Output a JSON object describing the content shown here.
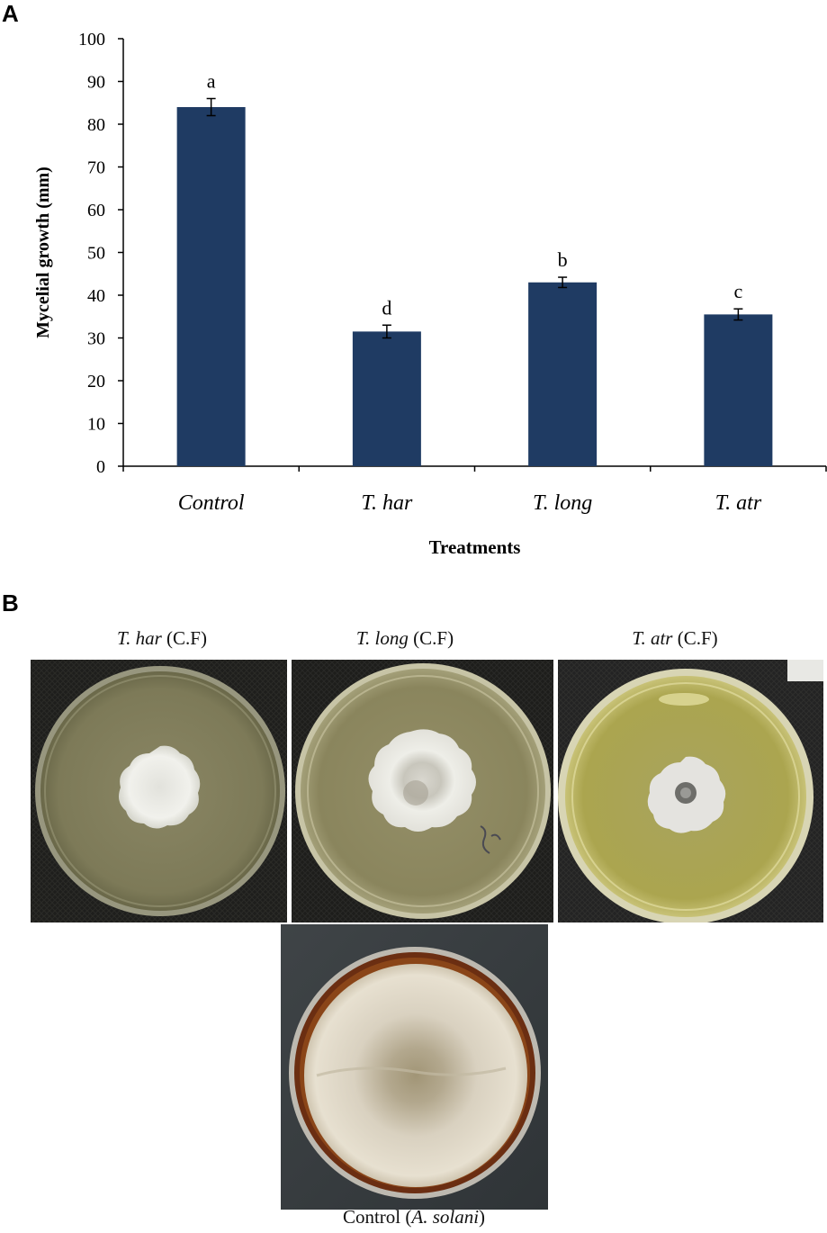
{
  "panel_a_label": "A",
  "panel_b_label": "B",
  "chart_data": {
    "type": "bar",
    "categories": [
      "Control",
      "T. har",
      "T. long",
      "T. atr"
    ],
    "values": [
      84,
      31.5,
      43,
      35.5
    ],
    "errors": [
      2,
      1.5,
      1.2,
      1.3
    ],
    "significance_letters": [
      "a",
      "d",
      "b",
      "c"
    ],
    "title": "",
    "xlabel": "Treatments",
    "ylabel": "Mycelial growth (mm)",
    "ylim": [
      0,
      100
    ],
    "yticks": [
      0,
      10,
      20,
      30,
      40,
      50,
      60,
      70,
      80,
      90,
      100
    ],
    "bar_color": "#1f3b63",
    "grid": false,
    "legend": "none"
  },
  "photos": {
    "t_har": {
      "name": "T. har",
      "suffix": " (C.F)"
    },
    "t_long": {
      "name": "T. long",
      "suffix": " (C.F)"
    },
    "t_atr": {
      "name": "T. atr",
      "suffix": " (C.F)"
    },
    "control": {
      "prefix": "Control (",
      "name": "A. solani",
      "suffix": ")"
    }
  }
}
